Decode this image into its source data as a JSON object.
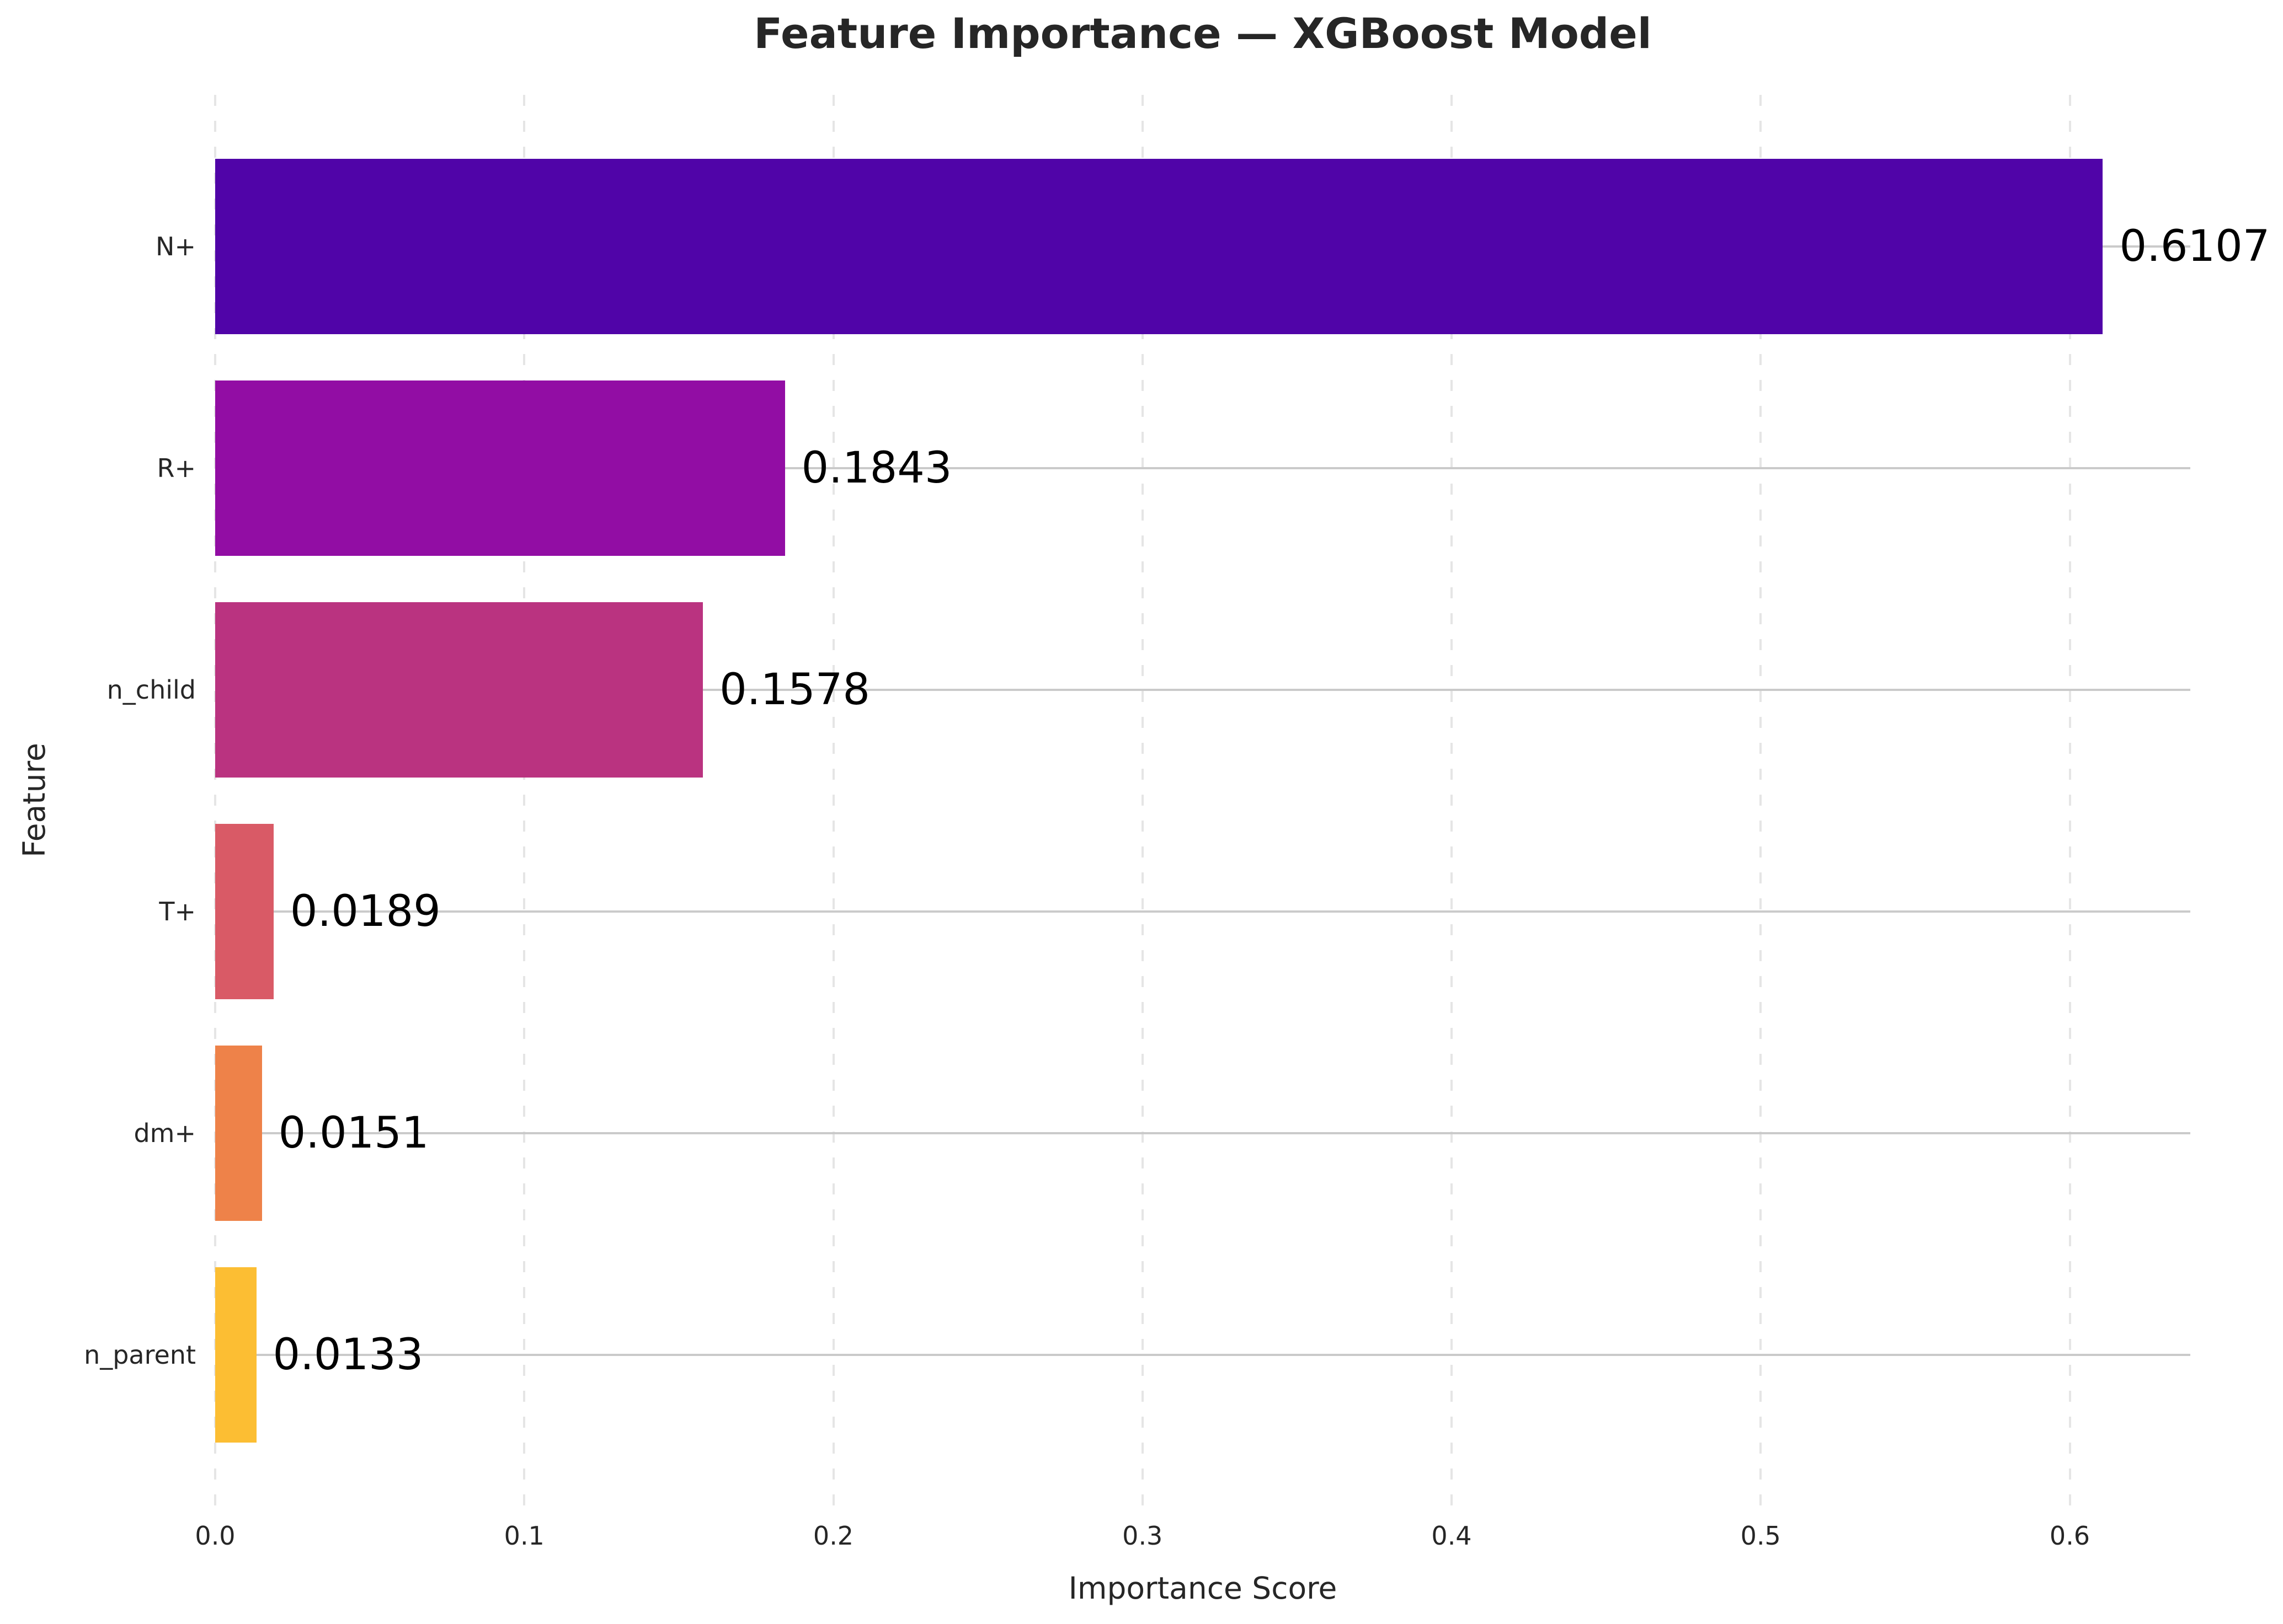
{
  "chart_data": {
    "type": "bar",
    "orientation": "horizontal",
    "title": "Feature Importance — XGBoost Model",
    "xlabel": "Importance Score",
    "ylabel": "Feature",
    "categories": [
      "N+",
      "R+",
      "n_child",
      "T+",
      "dm+",
      "n_parent"
    ],
    "values": [
      0.6107,
      0.1843,
      0.1578,
      0.0189,
      0.0151,
      0.0133
    ],
    "value_labels": [
      "0.6107",
      "0.1843",
      "0.1578",
      "0.0189",
      "0.0151",
      "0.0133"
    ],
    "bar_colors": [
      "#5004a8",
      "#920da4",
      "#ba3380",
      "#d95a66",
      "#ee8249",
      "#fcbe33"
    ],
    "xlim": [
      0,
      0.639
    ],
    "xticks": [
      0.0,
      0.1,
      0.2,
      0.3,
      0.4,
      0.5,
      0.6
    ],
    "xtick_labels": [
      "0.0",
      "0.1",
      "0.2",
      "0.3",
      "0.4",
      "0.5",
      "0.6"
    ],
    "grid": {
      "horizontal_style": "solid",
      "vertical_style": "dashed",
      "horizontal_color": "#cacaca",
      "vertical_color": "#e5e5e5"
    },
    "legend_position": "none",
    "background_color": "#ffffff",
    "text_color": "#262626"
  }
}
